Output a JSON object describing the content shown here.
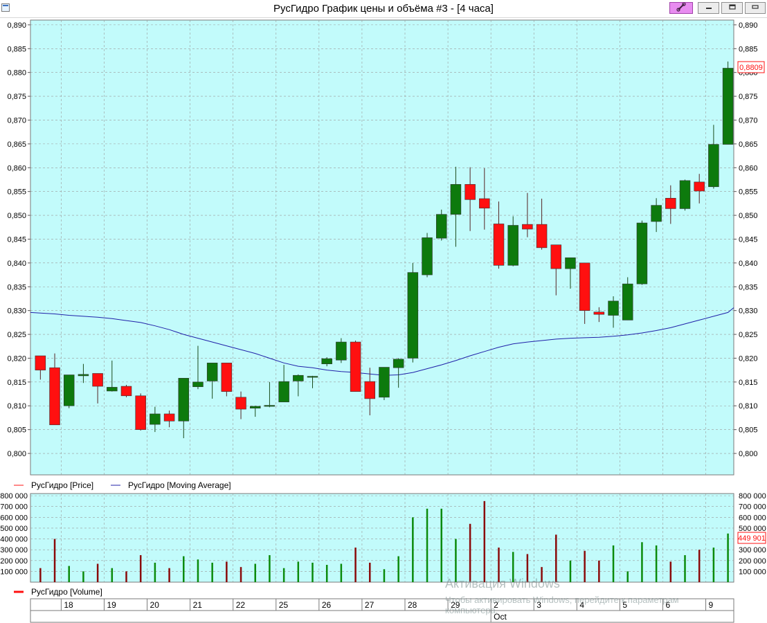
{
  "window": {
    "title": "РусГидро График цены и объёма #3 - [4 часа]",
    "link_icon": "link-icon",
    "minimize_icon": "minimize-icon",
    "restore_icon": "restore-icon",
    "close_icon": "close-icon"
  },
  "colors": {
    "plot_bg": "#c2fbfb",
    "up": "#0d7a0d",
    "down": "#ff1010",
    "vol_up": "#0a8a0a",
    "vol_down": "#8a0a0a",
    "ma": "#1f1fa8",
    "grid": "#9a9a9a"
  },
  "chart_data": [
    {
      "type": "candlestick",
      "title": "",
      "ylim": [
        0.7955,
        0.891
      ],
      "y_ticks": [
        "0,890",
        "0,885",
        "0,880",
        "0,875",
        "0,870",
        "0,865",
        "0,860",
        "0,855",
        "0,850",
        "0,845",
        "0,840",
        "0,835",
        "0,830",
        "0,825",
        "0,820",
        "0,815",
        "0,810",
        "0,805",
        "0,800"
      ],
      "last_value_label": "0,8809",
      "legend": [
        {
          "name": "РусГидро [Price]",
          "color": "#ff1010"
        },
        {
          "name": "РусГидро [Moving Average]",
          "color": "#1f1fa8"
        }
      ],
      "candles": [
        {
          "o": 0.8205,
          "h": 0.8205,
          "l": 0.8155,
          "c": 0.8175
        },
        {
          "o": 0.818,
          "h": 0.821,
          "l": 0.806,
          "c": 0.806
        },
        {
          "o": 0.81,
          "h": 0.8165,
          "l": 0.8095,
          "c": 0.8165
        },
        {
          "o": 0.8163,
          "h": 0.8188,
          "l": 0.8148,
          "c": 0.8166
        },
        {
          "o": 0.8168,
          "h": 0.8168,
          "l": 0.8105,
          "c": 0.8141
        },
        {
          "o": 0.8131,
          "h": 0.8195,
          "l": 0.813,
          "c": 0.8139
        },
        {
          "o": 0.8141,
          "h": 0.8144,
          "l": 0.8118,
          "c": 0.8121
        },
        {
          "o": 0.8121,
          "h": 0.8126,
          "l": 0.8048,
          "c": 0.805
        },
        {
          "o": 0.8061,
          "h": 0.8098,
          "l": 0.8045,
          "c": 0.8083
        },
        {
          "o": 0.8083,
          "h": 0.809,
          "l": 0.8055,
          "c": 0.8068
        },
        {
          "o": 0.8068,
          "h": 0.8158,
          "l": 0.8032,
          "c": 0.8158
        },
        {
          "o": 0.814,
          "h": 0.8226,
          "l": 0.8135,
          "c": 0.815
        },
        {
          "o": 0.8152,
          "h": 0.819,
          "l": 0.8115,
          "c": 0.819
        },
        {
          "o": 0.819,
          "h": 0.819,
          "l": 0.812,
          "c": 0.813
        },
        {
          "o": 0.8118,
          "h": 0.813,
          "l": 0.8072,
          "c": 0.8093
        },
        {
          "o": 0.8095,
          "h": 0.81,
          "l": 0.8077,
          "c": 0.8099
        },
        {
          "o": 0.8099,
          "h": 0.815,
          "l": 0.8097,
          "c": 0.8101
        },
        {
          "o": 0.8108,
          "h": 0.8186,
          "l": 0.8108,
          "c": 0.8151
        },
        {
          "o": 0.8152,
          "h": 0.8166,
          "l": 0.812,
          "c": 0.8164
        },
        {
          "o": 0.816,
          "h": 0.8163,
          "l": 0.8137,
          "c": 0.8162
        },
        {
          "o": 0.8188,
          "h": 0.8202,
          "l": 0.8183,
          "c": 0.8199
        },
        {
          "o": 0.8196,
          "h": 0.8242,
          "l": 0.819,
          "c": 0.8234
        },
        {
          "o": 0.8234,
          "h": 0.8237,
          "l": 0.813,
          "c": 0.813
        },
        {
          "o": 0.8151,
          "h": 0.818,
          "l": 0.808,
          "c": 0.8115
        },
        {
          "o": 0.8118,
          "h": 0.8181,
          "l": 0.8112,
          "c": 0.8181
        },
        {
          "o": 0.818,
          "h": 0.82,
          "l": 0.8138,
          "c": 0.8198
        },
        {
          "o": 0.82,
          "h": 0.84,
          "l": 0.8191,
          "c": 0.838
        },
        {
          "o": 0.8375,
          "h": 0.8463,
          "l": 0.837,
          "c": 0.8453
        },
        {
          "o": 0.8452,
          "h": 0.8512,
          "l": 0.8447,
          "c": 0.8502
        },
        {
          "o": 0.8502,
          "h": 0.8602,
          "l": 0.8434,
          "c": 0.8565
        },
        {
          "o": 0.8565,
          "h": 0.8601,
          "l": 0.8467,
          "c": 0.8533
        },
        {
          "o": 0.8535,
          "h": 0.8599,
          "l": 0.847,
          "c": 0.8515
        },
        {
          "o": 0.8482,
          "h": 0.8529,
          "l": 0.8388,
          "c": 0.8395
        },
        {
          "o": 0.8395,
          "h": 0.8498,
          "l": 0.8393,
          "c": 0.8479
        },
        {
          "o": 0.8481,
          "h": 0.8547,
          "l": 0.8454,
          "c": 0.8471
        },
        {
          "o": 0.8481,
          "h": 0.8535,
          "l": 0.8428,
          "c": 0.8432
        },
        {
          "o": 0.8438,
          "h": 0.8438,
          "l": 0.8332,
          "c": 0.8388
        },
        {
          "o": 0.8388,
          "h": 0.8411,
          "l": 0.8346,
          "c": 0.8411
        },
        {
          "o": 0.84,
          "h": 0.84,
          "l": 0.8272,
          "c": 0.83
        },
        {
          "o": 0.8297,
          "h": 0.8307,
          "l": 0.8276,
          "c": 0.8292
        },
        {
          "o": 0.829,
          "h": 0.833,
          "l": 0.8264,
          "c": 0.832
        },
        {
          "o": 0.828,
          "h": 0.837,
          "l": 0.828,
          "c": 0.8356
        },
        {
          "o": 0.8356,
          "h": 0.8489,
          "l": 0.8354,
          "c": 0.8484
        },
        {
          "o": 0.8487,
          "h": 0.8536,
          "l": 0.8465,
          "c": 0.8521
        },
        {
          "o": 0.8536,
          "h": 0.8563,
          "l": 0.8482,
          "c": 0.8514
        },
        {
          "o": 0.8514,
          "h": 0.8575,
          "l": 0.851,
          "c": 0.8573
        },
        {
          "o": 0.857,
          "h": 0.8587,
          "l": 0.8525,
          "c": 0.8551
        },
        {
          "o": 0.856,
          "h": 0.869,
          "l": 0.8556,
          "c": 0.8649
        },
        {
          "o": 0.8649,
          "h": 0.8823,
          "l": 0.8649,
          "c": 0.8809
        }
      ],
      "moving_average": [
        0.8296,
        0.8293,
        0.829,
        0.8288,
        0.8286,
        0.8283,
        0.8279,
        0.8275,
        0.8268,
        0.826,
        0.825,
        0.8242,
        0.8234,
        0.8226,
        0.8218,
        0.821,
        0.82,
        0.819,
        0.8183,
        0.818,
        0.8175,
        0.8172,
        0.817,
        0.8167,
        0.8164,
        0.8165,
        0.817,
        0.8178,
        0.8186,
        0.8195,
        0.8205,
        0.8214,
        0.8223,
        0.823,
        0.8234,
        0.8237,
        0.824,
        0.8242,
        0.8243,
        0.8244,
        0.8246,
        0.8249,
        0.8253,
        0.8258,
        0.8264,
        0.8272,
        0.828,
        0.8288,
        0.8296
      ]
    },
    {
      "type": "bar",
      "title": "",
      "ylim": [
        0,
        820000
      ],
      "y_ticks": [
        "800 000",
        "700 000",
        "600 000",
        "500 000",
        "400 000",
        "300 000",
        "200 000",
        "100 000"
      ],
      "y_tick_values": [
        800000,
        700000,
        600000,
        500000,
        400000,
        300000,
        200000,
        100000
      ],
      "last_value_label": "449 901",
      "legend": [
        {
          "name": "РусГидро [Volume]",
          "color": "#ff1010"
        }
      ],
      "volumes": [
        130000,
        400000,
        150000,
        100000,
        170000,
        130000,
        100000,
        250000,
        180000,
        130000,
        240000,
        210000,
        180000,
        190000,
        140000,
        170000,
        250000,
        130000,
        190000,
        180000,
        160000,
        170000,
        320000,
        180000,
        120000,
        240000,
        600000,
        680000,
        680000,
        400000,
        540000,
        750000,
        320000,
        280000,
        260000,
        140000,
        440000,
        200000,
        290000,
        200000,
        340000,
        100000,
        370000,
        340000,
        190000,
        250000,
        300000,
        320000,
        449901
      ]
    }
  ],
  "x_axis": {
    "day_labels": [
      {
        "text": "18",
        "bar": 2
      },
      {
        "text": "19",
        "bar": 5
      },
      {
        "text": "20",
        "bar": 8
      },
      {
        "text": "21",
        "bar": 11
      },
      {
        "text": "22",
        "bar": 14
      },
      {
        "text": "25",
        "bar": 17
      },
      {
        "text": "26",
        "bar": 20
      },
      {
        "text": "27",
        "bar": 23
      },
      {
        "text": "28",
        "bar": 26
      },
      {
        "text": "29",
        "bar": 29
      },
      {
        "text": "2",
        "bar": 32
      },
      {
        "text": "3",
        "bar": 35
      },
      {
        "text": "4",
        "bar": 38
      },
      {
        "text": "5",
        "bar": 41
      },
      {
        "text": "6",
        "bar": 44
      },
      {
        "text": "9",
        "bar": 47
      }
    ],
    "month_label": {
      "text": "Oct",
      "bar": 32
    }
  },
  "watermark": {
    "line1": "Активация Windows",
    "line2": "Чтобы активировать Windows, перейдите к параметрам компьютера."
  }
}
